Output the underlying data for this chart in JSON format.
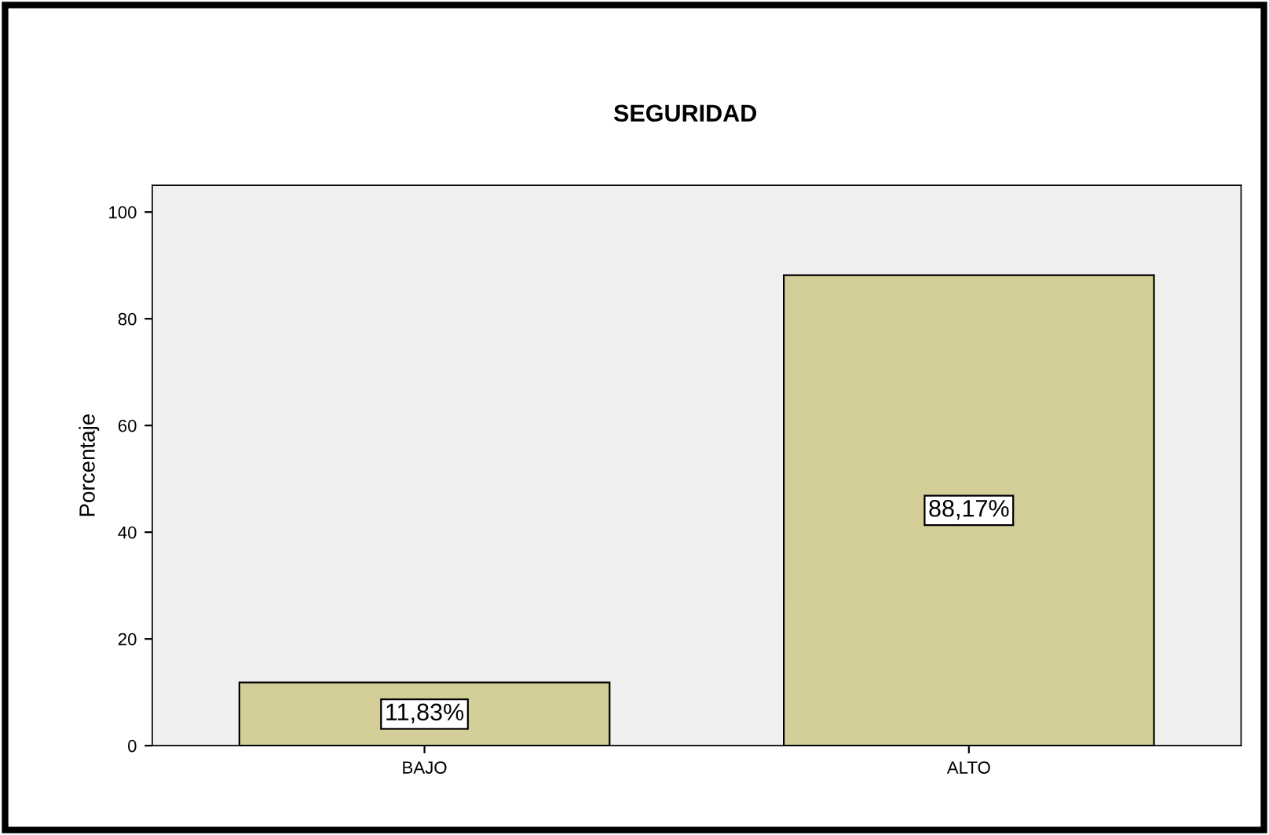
{
  "chart_data": {
    "type": "bar",
    "title": "SEGURIDAD",
    "ylabel": "Porcentaje",
    "categories": [
      "BAJO",
      "ALTO"
    ],
    "values": [
      11.83,
      88.17
    ],
    "value_labels": [
      "11,83%",
      "88,17%"
    ],
    "color": "#d3ce98",
    "ylim": [
      0,
      105
    ],
    "yticks": [
      0,
      20,
      40,
      60,
      80,
      100
    ],
    "grid": false,
    "legend": false
  }
}
